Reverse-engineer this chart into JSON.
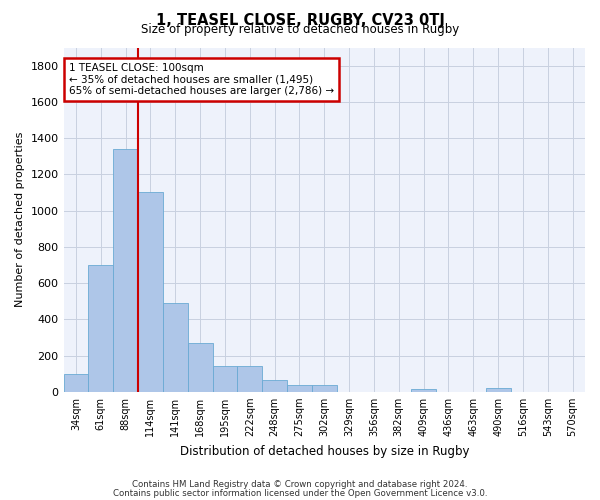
{
  "title": "1, TEASEL CLOSE, RUGBY, CV23 0TJ",
  "subtitle": "Size of property relative to detached houses in Rugby",
  "xlabel": "Distribution of detached houses by size in Rugby",
  "ylabel": "Number of detached properties",
  "categories": [
    "34sqm",
    "61sqm",
    "88sqm",
    "114sqm",
    "141sqm",
    "168sqm",
    "195sqm",
    "222sqm",
    "248sqm",
    "275sqm",
    "302sqm",
    "329sqm",
    "356sqm",
    "382sqm",
    "409sqm",
    "436sqm",
    "463sqm",
    "490sqm",
    "516sqm",
    "543sqm",
    "570sqm"
  ],
  "values": [
    100,
    700,
    1340,
    1100,
    490,
    270,
    140,
    140,
    65,
    35,
    35,
    0,
    0,
    0,
    15,
    0,
    0,
    20,
    0,
    0,
    0
  ],
  "bar_color": "#aec6e8",
  "bar_edge_color": "#6aaad4",
  "grid_color": "#c8d0e0",
  "annotation_line": 2,
  "annotation_box_line1": "1 TEASEL CLOSE: 100sqm",
  "annotation_box_line2": "← 35% of detached houses are smaller (1,495)",
  "annotation_box_line3": "65% of semi-detached houses are larger (2,786) →",
  "annotation_box_color": "#cc0000",
  "ylim": [
    0,
    1900
  ],
  "yticks": [
    0,
    200,
    400,
    600,
    800,
    1000,
    1200,
    1400,
    1600,
    1800
  ],
  "footnote1": "Contains HM Land Registry data © Crown copyright and database right 2024.",
  "footnote2": "Contains public sector information licensed under the Open Government Licence v3.0.",
  "bg_color": "#ffffff",
  "plot_bg_color": "#eef2fb"
}
